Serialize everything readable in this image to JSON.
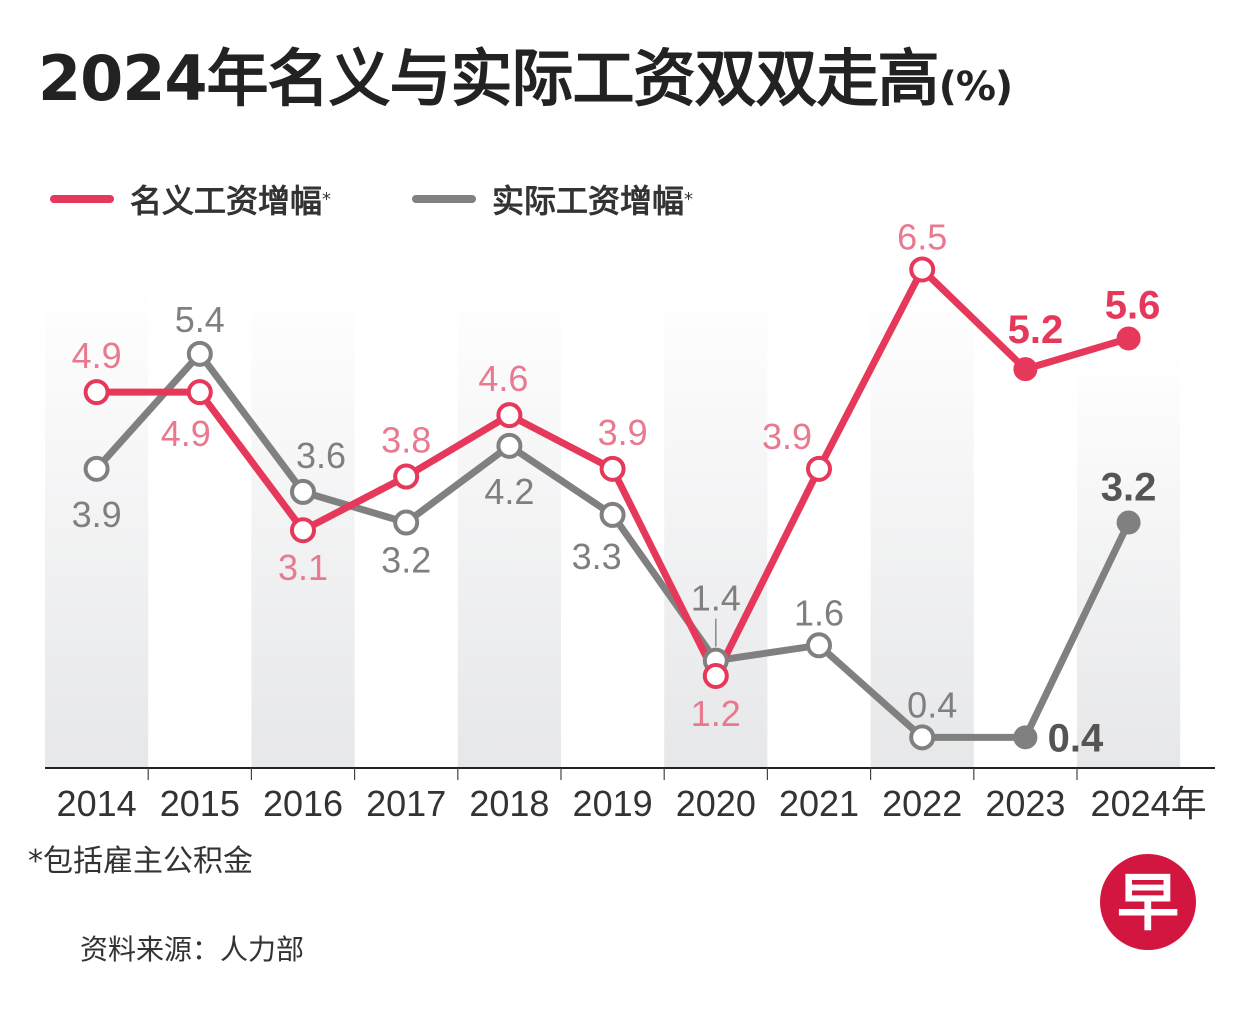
{
  "title": "2024年名义与实际工资双双走高",
  "title_unit": "(%)",
  "legend": [
    {
      "label": "名义工资增幅",
      "marker": "*",
      "color": "#e5385a"
    },
    {
      "label": "实际工资增幅",
      "marker": "*",
      "color": "#808080"
    }
  ],
  "footnote": "*包括雇主公积金",
  "source": "资料来源：人力部",
  "logo_text": "早",
  "chart_data": {
    "type": "line",
    "title": "2024年名义与实际工资双双走高(%)",
    "categories": [
      "2014",
      "2015",
      "2016",
      "2017",
      "2018",
      "2019",
      "2020",
      "2021",
      "2022",
      "2023",
      "2024年"
    ],
    "series": [
      {
        "name": "名义工资增幅*",
        "color": "#e5385a",
        "values": [
          4.9,
          4.9,
          3.1,
          3.8,
          4.6,
          3.9,
          1.2,
          3.9,
          6.5,
          5.2,
          5.6
        ]
      },
      {
        "name": "实际工资增幅*",
        "color": "#808080",
        "values": [
          3.9,
          5.4,
          3.6,
          3.2,
          4.2,
          3.3,
          1.4,
          1.6,
          0.4,
          0.4,
          3.2
        ]
      }
    ],
    "ylim": [
      0,
      7
    ],
    "grid": false,
    "legend_position": "top-left",
    "xlabel": "",
    "ylabel": ""
  }
}
